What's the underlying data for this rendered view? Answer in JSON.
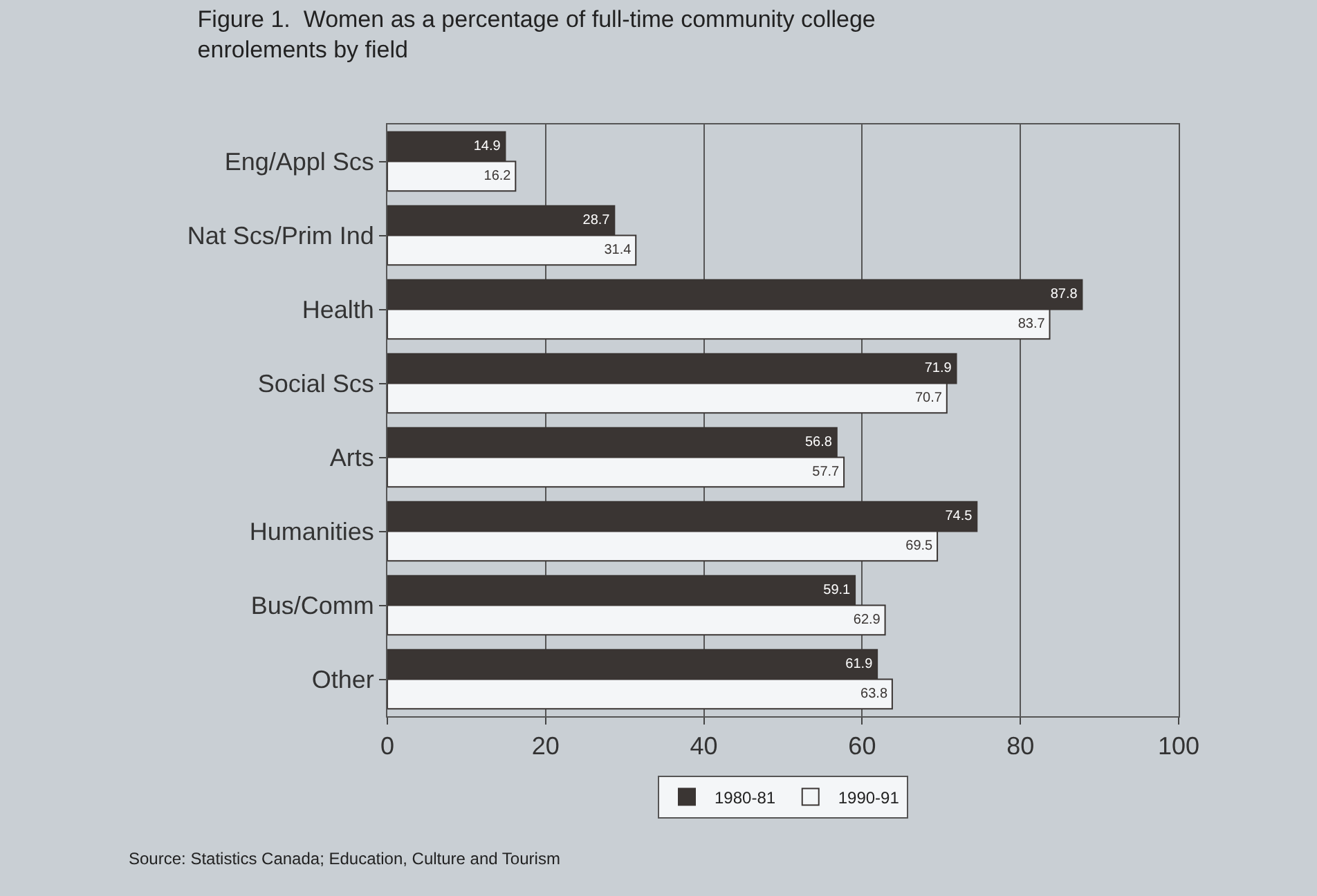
{
  "chart_data": {
    "type": "bar",
    "orientation": "horizontal",
    "title": "Figure 1.  Women as a percentage of full-time community college\nenrolements by field",
    "categories": [
      "Eng/Appl Scs",
      "Nat Scs/Prim Ind",
      "Health",
      "Social Scs",
      "Arts",
      "Humanities",
      "Bus/Comm",
      "Other"
    ],
    "series": [
      {
        "name": "1980-81",
        "color": "#3a3533",
        "values": [
          14.9,
          28.7,
          87.8,
          71.9,
          56.8,
          74.5,
          59.1,
          61.9
        ]
      },
      {
        "name": "1990-91",
        "color": "#f4f6f8",
        "values": [
          16.2,
          31.4,
          83.7,
          70.7,
          57.7,
          69.5,
          62.9,
          63.8
        ]
      }
    ],
    "xlim": [
      0,
      100
    ],
    "xticks": [
      0,
      20,
      40,
      60,
      80,
      100
    ],
    "grid": "x",
    "legend": "bottom",
    "data_labels": true,
    "annotations": [
      "Source: Statistics Canada; Education, Culture and Tourism"
    ]
  }
}
